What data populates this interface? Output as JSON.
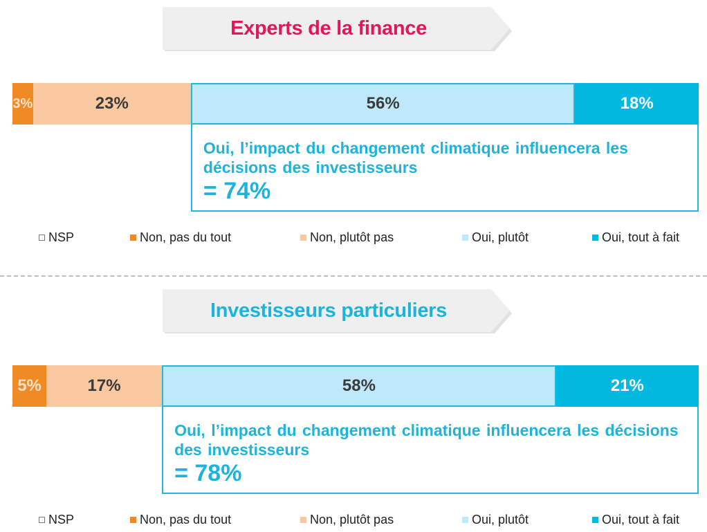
{
  "colors": {
    "nsp": "#ffffff",
    "non_pas_du_tout": "#f08a24",
    "non_plutot_pas": "#f8c8a0",
    "oui_plutot": "#bfe9fb",
    "oui_tout_a_fait": "#00b8e0",
    "title_pink": "#e3165b",
    "title_cyan": "#1cb3dd",
    "callout": "#1cb3dd"
  },
  "legend": [
    {
      "label": "NSP",
      "color_key": "nsp"
    },
    {
      "label": "Non, pas du tout",
      "color_key": "non_pas_du_tout"
    },
    {
      "label": "Non, plutôt pas",
      "color_key": "non_plutot_pas"
    },
    {
      "label": "Oui, plutôt",
      "color_key": "oui_plutot"
    },
    {
      "label": "Oui, tout à fait",
      "color_key": "oui_tout_a_fait"
    }
  ],
  "chart_data": [
    {
      "type": "bar",
      "orientation": "horizontal-stacked",
      "title": "Experts de la finance",
      "categories": [
        "Non, pas du tout",
        "Non, plutôt pas",
        "Oui, plutôt",
        "Oui, tout à fait"
      ],
      "values": [
        3,
        23,
        56,
        18
      ],
      "labels": [
        "3%",
        "23%",
        "56%",
        "18%"
      ],
      "callout": {
        "text": "Oui, l’impact du changement climatique influencera les décisions des investisseurs",
        "total": "= 74%"
      },
      "legend_position": "bottom"
    },
    {
      "type": "bar",
      "orientation": "horizontal-stacked",
      "title": "Investisseurs particuliers",
      "categories": [
        "Non, pas du tout",
        "Non, plutôt pas",
        "Oui, plutôt",
        "Oui, tout à fait"
      ],
      "values": [
        5,
        17,
        58,
        21
      ],
      "labels": [
        "5%",
        "17%",
        "58%",
        "21%"
      ],
      "callout": {
        "text": "Oui, l’impact du changement climatique influencera les décisions des investisseurs",
        "total": "= 78%"
      },
      "legend_position": "bottom"
    }
  ]
}
